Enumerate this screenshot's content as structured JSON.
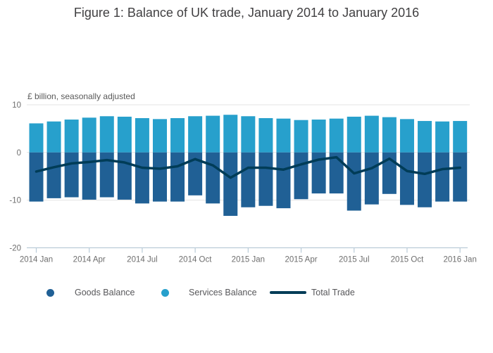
{
  "chart_data": {
    "type": "bar",
    "subtype": "stacked-bars-with-line-overlay",
    "title": "Figure 1: Balance of UK trade, January 2014 to January 2016",
    "unit_label": "£ billion, seasonally adjusted",
    "categories": [
      "2014 Jan",
      "2014 Feb",
      "2014 Mar",
      "2014 Apr",
      "2014 May",
      "2014 Jun",
      "2014 Jul",
      "2014 Aug",
      "2014 Sep",
      "2014 Oct",
      "2014 Nov",
      "2014 Dec",
      "2015 Jan",
      "2015 Feb",
      "2015 Mar",
      "2015 Apr",
      "2015 May",
      "2015 Jun",
      "2015 Jul",
      "2015 Aug",
      "2015 Sep",
      "2015 Oct",
      "2015 Nov",
      "2015 Dec",
      "2016 Jan"
    ],
    "x_tick_labels": [
      "2014 Jan",
      "2014 Apr",
      "2014 Jul",
      "2014 Oct",
      "2015 Jan",
      "2015 Apr",
      "2015 Jul",
      "2015 Oct",
      "2016 Jan"
    ],
    "x_tick_every": 3,
    "series": [
      {
        "name": "Goods Balance",
        "render": "bar",
        "color": "#206095",
        "values": [
          -10.3,
          -9.6,
          -9.4,
          -9.9,
          -9.4,
          -9.9,
          -10.7,
          -10.3,
          -10.3,
          -9.0,
          -10.7,
          -13.3,
          -11.5,
          -11.2,
          -11.7,
          -9.8,
          -8.6,
          -8.6,
          -12.2,
          -10.9,
          -8.7,
          -11.0,
          -11.5,
          -10.3,
          -10.3
        ]
      },
      {
        "name": "Services Balance",
        "render": "bar",
        "color": "#27A0CC",
        "values": [
          6.1,
          6.5,
          6.9,
          7.3,
          7.6,
          7.5,
          7.2,
          7.0,
          7.2,
          7.6,
          7.7,
          7.9,
          7.6,
          7.2,
          7.1,
          6.8,
          6.9,
          7.1,
          7.5,
          7.7,
          7.4,
          7.0,
          6.6,
          6.5,
          6.6
        ]
      },
      {
        "name": "Total Trade",
        "render": "line",
        "color": "#003C57",
        "values": [
          -4.0,
          -3.1,
          -2.3,
          -2.0,
          -1.6,
          -2.1,
          -3.2,
          -3.4,
          -2.9,
          -1.4,
          -2.7,
          -5.3,
          -3.2,
          -3.2,
          -3.6,
          -2.5,
          -1.5,
          -1.0,
          -4.4,
          -3.3,
          -1.3,
          -3.9,
          -4.5,
          -3.5,
          -3.2
        ]
      }
    ],
    "ylim": [
      -20,
      10
    ],
    "yticks": [
      10,
      0,
      -10,
      -20
    ],
    "grid": true,
    "legend_position": "bottom"
  },
  "colors": {
    "gridline": "#E3E3E3",
    "axis": "#B9CBD8",
    "tick_label": "#6E6E6E"
  }
}
